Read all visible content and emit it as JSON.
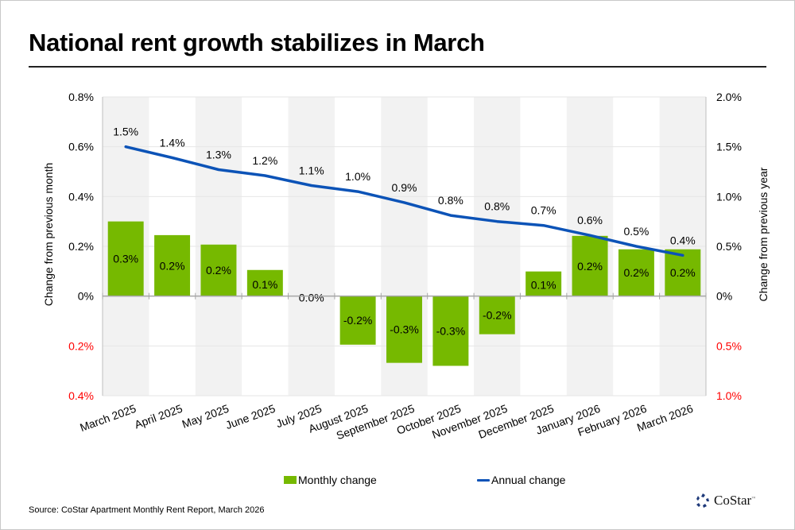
{
  "title": "National rent growth stabilizes in March",
  "source": "Source: CoStar Apartment Monthly Rent Report, March 2026",
  "logo": {
    "icon": "costar-star-logo-icon",
    "text": "CoStar",
    "tm": "™"
  },
  "legend": {
    "monthly": "Monthly change",
    "annual": "Annual change"
  },
  "colors": {
    "bar": "#76b900",
    "line": "#0c53b7",
    "negative_tick": "#ff0000",
    "band": "#f2f2f2"
  },
  "chart_data": {
    "type": "bar",
    "title": "National rent growth stabilizes in March",
    "categories": [
      "March 2025",
      "April 2025",
      "May 2025",
      "June 2025",
      "July 2025",
      "August 2025",
      "September 2025",
      "October 2025",
      "November 2025",
      "December 2025",
      "January 2026",
      "February 2026",
      "March 2026"
    ],
    "series": [
      {
        "name": "Monthly change",
        "type": "bar",
        "axis": "left",
        "values": [
          0.3,
          0.245,
          0.207,
          0.105,
          0.0,
          -0.195,
          -0.268,
          -0.28,
          -0.153,
          0.099,
          0.242,
          0.188,
          0.188
        ],
        "labels": [
          "0.3%",
          "0.2%",
          "0.2%",
          "0.1%",
          "0.0%",
          "-0.2%",
          "-0.3%",
          "-0.3%",
          "-0.2%",
          "0.1%",
          "0.2%",
          "0.2%",
          "0.2%"
        ]
      },
      {
        "name": "Annual change",
        "type": "line",
        "axis": "right",
        "values": [
          1.5,
          1.39,
          1.27,
          1.21,
          1.11,
          1.05,
          0.94,
          0.81,
          0.75,
          0.71,
          0.61,
          0.5,
          0.41
        ],
        "labels": [
          "1.5%",
          "1.4%",
          "1.3%",
          "1.2%",
          "1.1%",
          "1.0%",
          "0.9%",
          "0.8%",
          "0.8%",
          "0.7%",
          "0.6%",
          "0.5%",
          "0.4%"
        ]
      }
    ],
    "left_axis": {
      "label": "Change from previous month",
      "range": [
        -0.4,
        0.8
      ],
      "ticks": [
        0.8,
        0.6,
        0.4,
        0.2,
        0,
        -0.2,
        -0.4
      ],
      "tick_labels": [
        "0.8%",
        "0.6%",
        "0.4%",
        "0.2%",
        "0%",
        "0.2%",
        "0.4%"
      ]
    },
    "right_axis": {
      "label": "Change from previous year",
      "range": [
        -1.0,
        2.0
      ],
      "ticks": [
        2.0,
        1.5,
        1.0,
        0.5,
        0,
        -0.5,
        -1.0
      ],
      "tick_labels": [
        "2.0%",
        "1.5%",
        "1.0%",
        "0.5%",
        "0%",
        "0.5%",
        "1.0%"
      ]
    },
    "grid": true,
    "alternating_bands": true,
    "legend_position": "bottom"
  }
}
